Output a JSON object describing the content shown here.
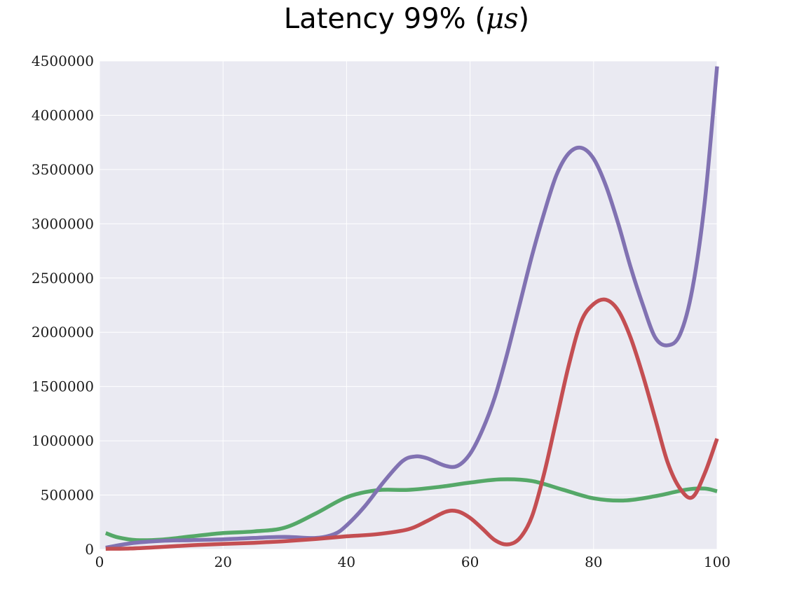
{
  "chart_data": {
    "type": "line",
    "title": "Latency 99% (μs)",
    "title_main": "Latency 99%",
    "title_unit": "μs",
    "xlabel": "",
    "ylabel": "",
    "xlim": [
      0,
      100
    ],
    "ylim": [
      0,
      4500000
    ],
    "x_ticks": [
      0,
      20,
      40,
      60,
      80,
      100
    ],
    "x_tick_labels": [
      "0",
      "20",
      "40",
      "60",
      "80",
      "100"
    ],
    "y_ticks": [
      0,
      500000,
      1000000,
      1500000,
      2000000,
      2500000,
      3000000,
      3500000,
      4000000,
      4500000
    ],
    "y_tick_labels": [
      "0",
      "500000",
      "1000000",
      "1500000",
      "2000000",
      "2500000",
      "3000000",
      "3500000",
      "4000000",
      "4500000"
    ],
    "grid": true,
    "background": "#eaeaf2",
    "series": [
      {
        "color": "#55a868",
        "points": [
          [
            1,
            150000
          ],
          [
            3,
            110000
          ],
          [
            6,
            85000
          ],
          [
            10,
            90000
          ],
          [
            15,
            120000
          ],
          [
            20,
            150000
          ],
          [
            25,
            165000
          ],
          [
            30,
            200000
          ],
          [
            35,
            330000
          ],
          [
            40,
            480000
          ],
          [
            45,
            545000
          ],
          [
            50,
            548000
          ],
          [
            55,
            575000
          ],
          [
            60,
            615000
          ],
          [
            65,
            645000
          ],
          [
            70,
            630000
          ],
          [
            75,
            550000
          ],
          [
            80,
            470000
          ],
          [
            85,
            450000
          ],
          [
            90,
            490000
          ],
          [
            95,
            550000
          ],
          [
            98,
            560000
          ],
          [
            100,
            535000
          ]
        ]
      },
      {
        "color": "#8172b2",
        "points": [
          [
            1,
            15000
          ],
          [
            5,
            55000
          ],
          [
            10,
            78000
          ],
          [
            15,
            85000
          ],
          [
            20,
            92000
          ],
          [
            25,
            105000
          ],
          [
            30,
            115000
          ],
          [
            35,
            105000
          ],
          [
            38,
            140000
          ],
          [
            40,
            220000
          ],
          [
            43,
            400000
          ],
          [
            46,
            620000
          ],
          [
            49,
            810000
          ],
          [
            51,
            855000
          ],
          [
            53,
            840000
          ],
          [
            56,
            770000
          ],
          [
            58,
            770000
          ],
          [
            60,
            880000
          ],
          [
            62,
            1100000
          ],
          [
            64,
            1400000
          ],
          [
            66,
            1800000
          ],
          [
            68,
            2250000
          ],
          [
            70,
            2700000
          ],
          [
            72,
            3100000
          ],
          [
            74,
            3450000
          ],
          [
            76,
            3650000
          ],
          [
            78,
            3700000
          ],
          [
            80,
            3600000
          ],
          [
            82,
            3350000
          ],
          [
            84,
            3000000
          ],
          [
            86,
            2600000
          ],
          [
            88,
            2250000
          ],
          [
            90,
            1950000
          ],
          [
            92,
            1880000
          ],
          [
            94,
            1980000
          ],
          [
            96,
            2400000
          ],
          [
            98,
            3200000
          ],
          [
            100,
            4450000
          ]
        ]
      },
      {
        "color": "#c44e52",
        "points": [
          [
            1,
            5000
          ],
          [
            5,
            8000
          ],
          [
            10,
            22000
          ],
          [
            15,
            38000
          ],
          [
            20,
            50000
          ],
          [
            25,
            60000
          ],
          [
            30,
            75000
          ],
          [
            35,
            95000
          ],
          [
            40,
            120000
          ],
          [
            45,
            140000
          ],
          [
            50,
            185000
          ],
          [
            53,
            260000
          ],
          [
            56,
            345000
          ],
          [
            58,
            350000
          ],
          [
            60,
            290000
          ],
          [
            62,
            190000
          ],
          [
            64,
            85000
          ],
          [
            66,
            45000
          ],
          [
            68,
            100000
          ],
          [
            70,
            300000
          ],
          [
            72,
            700000
          ],
          [
            74,
            1200000
          ],
          [
            76,
            1700000
          ],
          [
            78,
            2100000
          ],
          [
            80,
            2260000
          ],
          [
            82,
            2300000
          ],
          [
            84,
            2200000
          ],
          [
            86,
            1950000
          ],
          [
            88,
            1600000
          ],
          [
            90,
            1200000
          ],
          [
            92,
            800000
          ],
          [
            94,
            560000
          ],
          [
            96,
            480000
          ],
          [
            98,
            700000
          ],
          [
            100,
            1020000
          ]
        ]
      }
    ]
  }
}
